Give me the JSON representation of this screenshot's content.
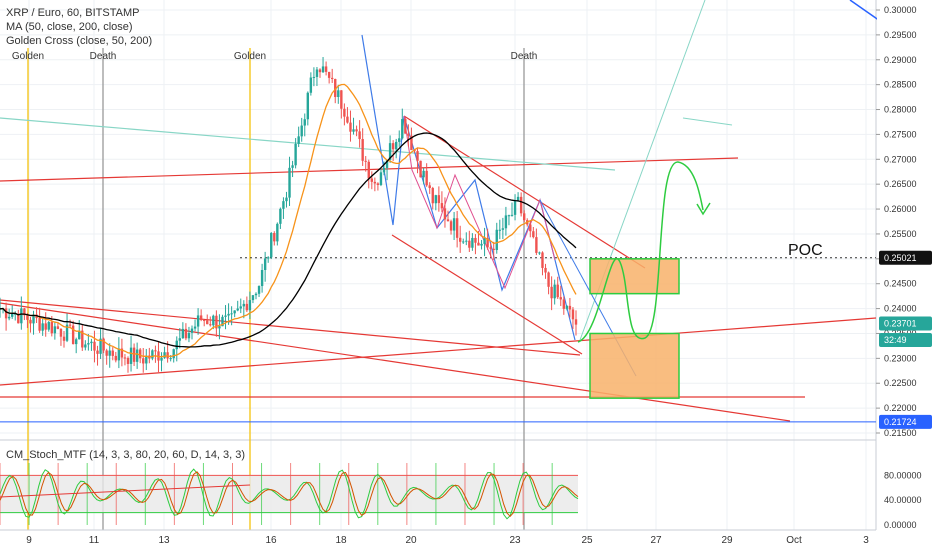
{
  "header": {
    "title": "XRP / Euro, 60, BITSTAMP",
    "ma": "MA (50, close, 200, close)",
    "golden_cross": "Golden Cross (close, 50, 200)"
  },
  "cross_markers": [
    {
      "label": "Golden",
      "color": "#f5c518"
    },
    {
      "label": "Death",
      "color": "#9e9e9e"
    },
    {
      "label": "Golden",
      "color": "#f5c518"
    },
    {
      "label": "Death",
      "color": "#9e9e9e"
    }
  ],
  "annotation": {
    "poc_label": "POC"
  },
  "price_axis": {
    "ticks": [
      "0.30000",
      "0.29500",
      "0.29000",
      "0.28500",
      "0.28000",
      "0.27500",
      "0.27000",
      "0.26500",
      "0.26000",
      "0.25500",
      "0.25000",
      "0.24500",
      "0.24000",
      "0.23500",
      "0.23000",
      "0.22500",
      "0.22000",
      "0.21500"
    ],
    "badges": [
      {
        "label": "0.25021",
        "value": 0.25021,
        "bg": "#111111"
      },
      {
        "label": "0.23701",
        "value": 0.23701,
        "bg": "#26a69a"
      },
      {
        "label": "32:49",
        "value": 0.2337,
        "bg": "#26a69a"
      },
      {
        "label": "0.21724",
        "value": 0.21724,
        "bg": "#2962ff"
      }
    ]
  },
  "stoch_axis": {
    "ticks": [
      "80.00000",
      "40.00000",
      "0.00000"
    ],
    "label": "CM_Stoch_MTF (14, 3, 3, 80, 20, 60, D, 14, 3, 3)"
  },
  "date_axis": {
    "labels": [
      "9",
      "11",
      "13",
      "16",
      "18",
      "20",
      "23",
      "25",
      "27",
      "29",
      "Oct",
      "3"
    ]
  },
  "colors": {
    "up": "#26a69a",
    "down": "#ef5350",
    "ma50": "#f7931a",
    "ma200": "#000000",
    "trend": "#e53935",
    "forecast": "#2ecc40",
    "zone_fill": "#f8b26a",
    "zone_border": "#2ecc40"
  },
  "chart_data": {
    "type": "candlestick",
    "title": "XRP / Euro, 60, BITSTAMP",
    "ylim": [
      0.215,
      0.3
    ],
    "dates": [
      "9",
      "11",
      "13",
      "16",
      "18",
      "20",
      "23",
      "25",
      "27",
      "29",
      "Oct",
      "3"
    ],
    "price_path": [
      {
        "x": "Sep 8",
        "close": 0.24
      },
      {
        "x": "Sep 9",
        "close": 0.238
      },
      {
        "x": "Sep 10",
        "close": 0.236
      },
      {
        "x": "Sep 11",
        "close": 0.233
      },
      {
        "x": "Sep 12",
        "close": 0.231
      },
      {
        "x": "Sep 13",
        "close": 0.23
      },
      {
        "x": "Sep 14",
        "close": 0.232
      },
      {
        "x": "Sep 15",
        "close": 0.238
      },
      {
        "x": "Sep 16",
        "close": 0.237
      },
      {
        "x": "Sep 17",
        "close": 0.245
      },
      {
        "x": "Sep 17.5",
        "close": 0.265
      },
      {
        "x": "Sep 18",
        "close": 0.29
      },
      {
        "x": "Sep 18.5",
        "close": 0.28
      },
      {
        "x": "Sep 19",
        "close": 0.265
      },
      {
        "x": "Sep 20",
        "close": 0.278
      },
      {
        "x": "Sep 21",
        "close": 0.262
      },
      {
        "x": "Sep 22",
        "close": 0.255
      },
      {
        "x": "Sep 23",
        "close": 0.252
      },
      {
        "x": "Sep 23.5",
        "close": 0.261
      },
      {
        "x": "Sep 24",
        "close": 0.245
      },
      {
        "x": "Sep 24.5",
        "close": 0.237
      }
    ],
    "moving_averages": [
      {
        "name": "MA 50",
        "color": "#f7931a"
      },
      {
        "name": "MA 200",
        "color": "#000000"
      }
    ],
    "levels": {
      "poc": 0.25021,
      "last": 0.23701,
      "support": 0.21724
    },
    "zones": [
      {
        "name": "upper",
        "from": 0.243,
        "to": 0.25
      },
      {
        "name": "lower",
        "from": 0.222,
        "to": 0.235
      }
    ],
    "stochastic": {
      "ylim": [
        0,
        100
      ],
      "upper": 80,
      "lower": 20
    }
  }
}
